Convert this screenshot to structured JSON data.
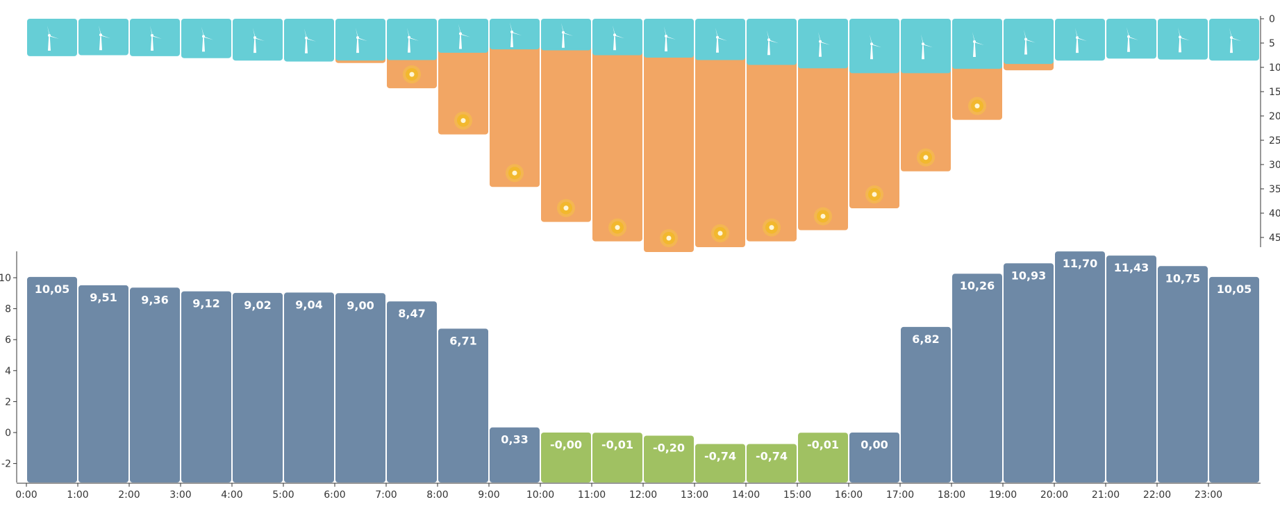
{
  "chart_data": [
    {
      "type": "bar",
      "id": "production",
      "y_inverted": true,
      "ylim": [
        0,
        47
      ],
      "yticks": [
        0,
        5,
        10,
        15,
        20,
        25,
        30,
        35,
        40,
        45
      ],
      "ytick_labels": [
        "0",
        "5",
        "10",
        "15",
        "20",
        "25",
        "30",
        "35",
        "40",
        "45"
      ],
      "categories": [
        "0:00",
        "1:00",
        "2:00",
        "3:00",
        "4:00",
        "5:00",
        "6:00",
        "7:00",
        "8:00",
        "9:00",
        "10:00",
        "11:00",
        "12:00",
        "13:00",
        "14:00",
        "15:00",
        "16:00",
        "17:00",
        "18:00",
        "19:00",
        "20:00",
        "21:00",
        "22:00",
        "23:00"
      ],
      "stacked": true,
      "series": [
        {
          "id": "wind",
          "icon": "wind-turbine-icon",
          "color": "#66CED6",
          "values": [
            7.7,
            7.5,
            7.7,
            8.1,
            8.6,
            8.8,
            8.6,
            8.5,
            7.0,
            6.3,
            6.5,
            7.5,
            8.0,
            8.5,
            9.5,
            10.2,
            11.2,
            11.2,
            10.3,
            9.3,
            8.6,
            8.2,
            8.4,
            8.6
          ]
        },
        {
          "id": "solar",
          "icon": "sun-icon",
          "color": "#F2A664",
          "values": [
            0,
            0,
            0,
            0,
            0,
            0,
            0.5,
            5.8,
            16.8,
            28.3,
            35.3,
            38.3,
            40.0,
            38.5,
            36.3,
            33.3,
            27.8,
            20.2,
            10.5,
            1.3,
            0,
            0,
            0,
            0
          ]
        }
      ]
    },
    {
      "type": "bar",
      "id": "price",
      "ylim": [
        -3.3,
        11.9
      ],
      "yticks": [
        -2,
        0,
        2,
        4,
        6,
        8,
        10
      ],
      "ytick_labels": [
        "-2",
        "0",
        "2",
        "4",
        "6",
        "8",
        "10"
      ],
      "categories": [
        "0:00",
        "1:00",
        "2:00",
        "3:00",
        "4:00",
        "5:00",
        "6:00",
        "7:00",
        "8:00",
        "9:00",
        "10:00",
        "11:00",
        "12:00",
        "13:00",
        "14:00",
        "15:00",
        "16:00",
        "17:00",
        "18:00",
        "19:00",
        "20:00",
        "21:00",
        "22:00",
        "23:00"
      ],
      "xtick_labels": [
        "0:00",
        "1:00",
        "2:00",
        "3:00",
        "4:00",
        "5:00",
        "6:00",
        "7:00",
        "8:00",
        "9:00",
        "10:00",
        "11:00",
        "12:00",
        "13:00",
        "14:00",
        "15:00",
        "16:00",
        "17:00",
        "18:00",
        "19:00",
        "20:00",
        "21:00",
        "22:00",
        "23:00"
      ],
      "values": [
        10.05,
        9.51,
        9.36,
        9.12,
        9.02,
        9.04,
        9.0,
        8.47,
        6.71,
        0.33,
        -0.0,
        -0.01,
        -0.2,
        -0.74,
        -0.74,
        -0.01,
        0.0,
        6.82,
        10.26,
        10.93,
        11.7,
        11.43,
        10.75,
        10.05
      ],
      "labels": [
        "10,05",
        "9,51",
        "9,36",
        "9,12",
        "9,02",
        "9,04",
        "9,00",
        "8,47",
        "6,71",
        "0,33",
        "-0,00",
        "-0,01",
        "-0,20",
        "-0,74",
        "-0,74",
        "-0,01",
        "0,00",
        "6,82",
        "10,26",
        "10,93",
        "11,70",
        "11,43",
        "10,75",
        "10,05"
      ],
      "colors": {
        "positive": "#6E89A6",
        "negative": "#A0C162"
      }
    }
  ]
}
